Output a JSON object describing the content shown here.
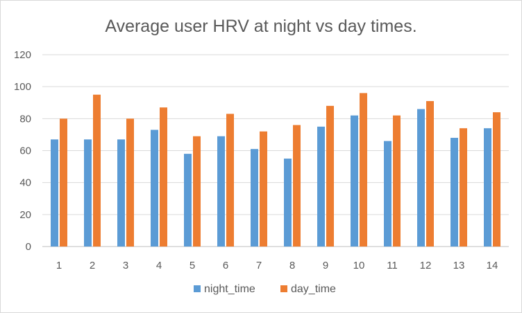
{
  "chart_data": {
    "type": "bar",
    "title": "Average user HRV at night vs day times.",
    "xlabel": "",
    "ylabel": "",
    "ylim": [
      0,
      120
    ],
    "yticks": [
      0,
      20,
      40,
      60,
      80,
      100,
      120
    ],
    "grid": true,
    "legend_position": "bottom",
    "categories": [
      "1",
      "2",
      "3",
      "4",
      "5",
      "6",
      "7",
      "8",
      "9",
      "10",
      "11",
      "12",
      "13",
      "14"
    ],
    "series": [
      {
        "name": "night_time",
        "color": "#5b9bd5",
        "values": [
          67,
          67,
          67,
          73,
          58,
          69,
          61,
          55,
          75,
          82,
          66,
          86,
          68,
          74
        ]
      },
      {
        "name": "day_time",
        "color": "#ed7d31",
        "values": [
          80,
          95,
          80,
          87,
          69,
          83,
          72,
          76,
          88,
          96,
          82,
          91,
          74,
          84
        ]
      }
    ]
  }
}
